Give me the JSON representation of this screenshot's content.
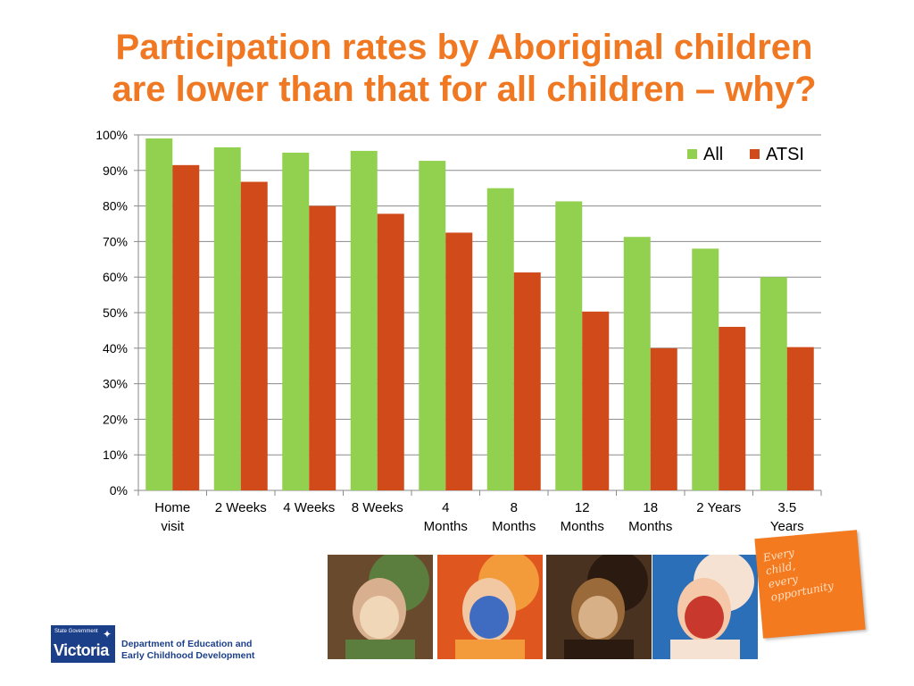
{
  "title_lines": [
    "Participation rates by Aboriginal children",
    "are lower than that for all children – why?"
  ],
  "chart_data": {
    "type": "bar",
    "title": "",
    "xlabel": "",
    "ylabel": "",
    "categories": [
      [
        "Home",
        "visit"
      ],
      [
        "2 Weeks"
      ],
      [
        "4 Weeks"
      ],
      [
        "8 Weeks"
      ],
      [
        "4",
        "Months"
      ],
      [
        "8",
        "Months"
      ],
      [
        "12",
        "Months"
      ],
      [
        "18",
        "Months"
      ],
      [
        "2 Years"
      ],
      [
        "3.5",
        "Years"
      ]
    ],
    "series": [
      {
        "name": "All",
        "color": "#92d050",
        "values": [
          99,
          96.5,
          95,
          95.5,
          92.7,
          85,
          81.3,
          71.3,
          68,
          60
        ]
      },
      {
        "name": "ATSI",
        "color": "#d14b1a",
        "values": [
          91.5,
          86.8,
          80,
          77.8,
          72.5,
          61.3,
          50.3,
          40,
          46,
          40.3
        ]
      }
    ],
    "ylim": [
      0,
      100
    ],
    "yticks": [
      0,
      10,
      20,
      30,
      40,
      50,
      60,
      70,
      80,
      90,
      100
    ],
    "ytick_format": "percent",
    "grid": true,
    "legend_position": "top-right"
  },
  "photos": [
    {
      "name": "father-and-toddler-photo",
      "palette": [
        "#6a4a2c",
        "#d8b090",
        "#f0d7b8",
        "#5b7d3e"
      ]
    },
    {
      "name": "baby-photo",
      "palette": [
        "#e0561f",
        "#f2c8a2",
        "#3f6cc0",
        "#f39a3a"
      ]
    },
    {
      "name": "child-painted-face-photo",
      "palette": [
        "#4a3220",
        "#9a6a3a",
        "#d8b088",
        "#2a1a10"
      ]
    },
    {
      "name": "smiling-girl-photo",
      "palette": [
        "#2b6fb8",
        "#f4c8a8",
        "#c8382c",
        "#f6e2d2"
      ]
    }
  ],
  "tagline": "Every\nchild,\nevery\nopportunity",
  "logo": {
    "sub": "State Government",
    "main": "Victoria",
    "star": "✦"
  },
  "department": "Department of Education and\nEarly Childhood Development"
}
